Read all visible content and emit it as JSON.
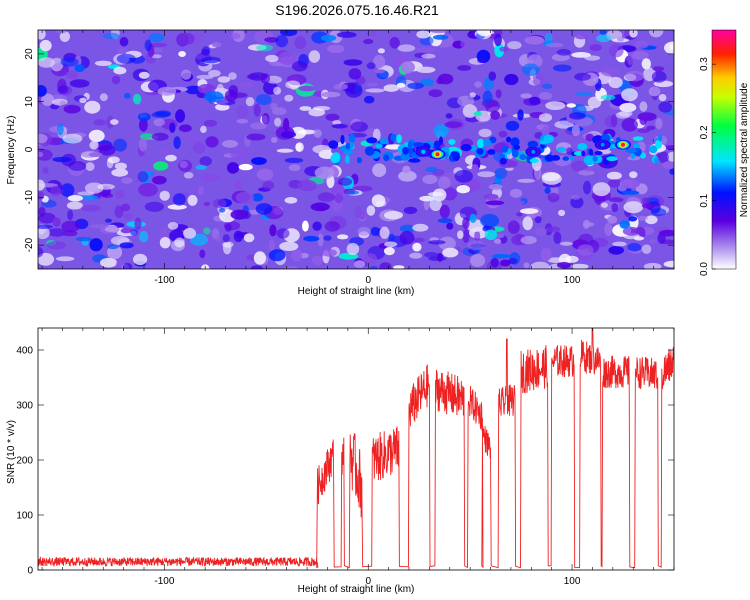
{
  "title": "S196.2026.075.16.46.R21",
  "chart_data": [
    {
      "type": "heatmap",
      "name": "spectrogram",
      "xlabel": "Height of straight line (km)",
      "ylabel": "Frequency (Hz)",
      "xlim": [
        -162,
        150
      ],
      "ylim": [
        -25,
        25
      ],
      "xticks": [
        -100,
        0,
        100
      ],
      "yticks": [
        -20,
        -10,
        0,
        10,
        20
      ],
      "colorbar": {
        "label": "Normalized spectral amplitude",
        "range": [
          0.0,
          0.35
        ],
        "ticks": [
          0.0,
          0.1,
          0.2,
          0.3
        ],
        "stops": [
          "#ffffff",
          "#8a2be2",
          "#0000ff",
          "#00ffff",
          "#00ff00",
          "#ffff00",
          "#ff0000",
          "#ff00a0"
        ]
      },
      "highlights": [
        {
          "x": 34,
          "y": -1,
          "value": 0.33
        },
        {
          "x": 125,
          "y": 1,
          "value": 0.33
        },
        {
          "x": 27,
          "y": -0.5,
          "value": 0.15
        },
        {
          "x": 81,
          "y": -0.5,
          "value": 0.14
        },
        {
          "x": 115,
          "y": 1,
          "value": 0.14
        }
      ]
    },
    {
      "type": "line",
      "name": "snr",
      "xlabel": "Height of straight line (km)",
      "ylabel": "SNR (10 * v/v)",
      "xlim": [
        -162,
        150
      ],
      "ylim": [
        0,
        440
      ],
      "xticks": [
        -100,
        0,
        100
      ],
      "yticks": [
        0,
        100,
        200,
        300,
        400
      ],
      "color": "#ee2222",
      "segments": [
        {
          "x": [
            -162,
            -25
          ],
          "y": [
            15,
            15
          ],
          "noise": 8
        },
        {
          "x": [
            -25,
            -17
          ],
          "y": [
            150,
            210
          ],
          "noise": 35
        },
        {
          "x": [
            -13,
            -12
          ],
          "y": [
            200,
            215
          ],
          "noise": 30
        },
        {
          "x": [
            -9,
            -3
          ],
          "y": [
            215,
            150
          ],
          "noise": 60
        },
        {
          "x": [
            2,
            15
          ],
          "y": [
            200,
            220
          ],
          "noise": 45
        },
        {
          "x": [
            20,
            30
          ],
          "y": [
            290,
            340
          ],
          "noise": 40
        },
        {
          "x": [
            33,
            47
          ],
          "y": [
            330,
            310
          ],
          "noise": 40
        },
        {
          "x": [
            49,
            56
          ],
          "y": [
            310,
            280
          ],
          "noise": 30
        },
        {
          "x": [
            56,
            60
          ],
          "y": [
            250,
            220
          ],
          "noise": 25
        },
        {
          "x": [
            64,
            72
          ],
          "y": [
            300,
            310
          ],
          "noise": 30
        },
        {
          "x": [
            75,
            88
          ],
          "y": [
            360,
            370
          ],
          "noise": 40
        },
        {
          "x": [
            90,
            101
          ],
          "y": [
            380,
            380
          ],
          "noise": 30
        },
        {
          "x": [
            104,
            114
          ],
          "y": [
            390,
            380
          ],
          "noise": 30
        },
        {
          "x": [
            115,
            128
          ],
          "y": [
            360,
            360
          ],
          "noise": 30
        },
        {
          "x": [
            131,
            142
          ],
          "y": [
            360,
            355
          ],
          "noise": 30
        },
        {
          "x": [
            144,
            150
          ],
          "y": [
            355,
            380
          ],
          "noise": 35
        }
      ],
      "peaks": [
        {
          "x": -10,
          "y": 360
        },
        {
          "x": 68,
          "y": 420
        },
        {
          "x": 110,
          "y": 440
        }
      ]
    }
  ]
}
